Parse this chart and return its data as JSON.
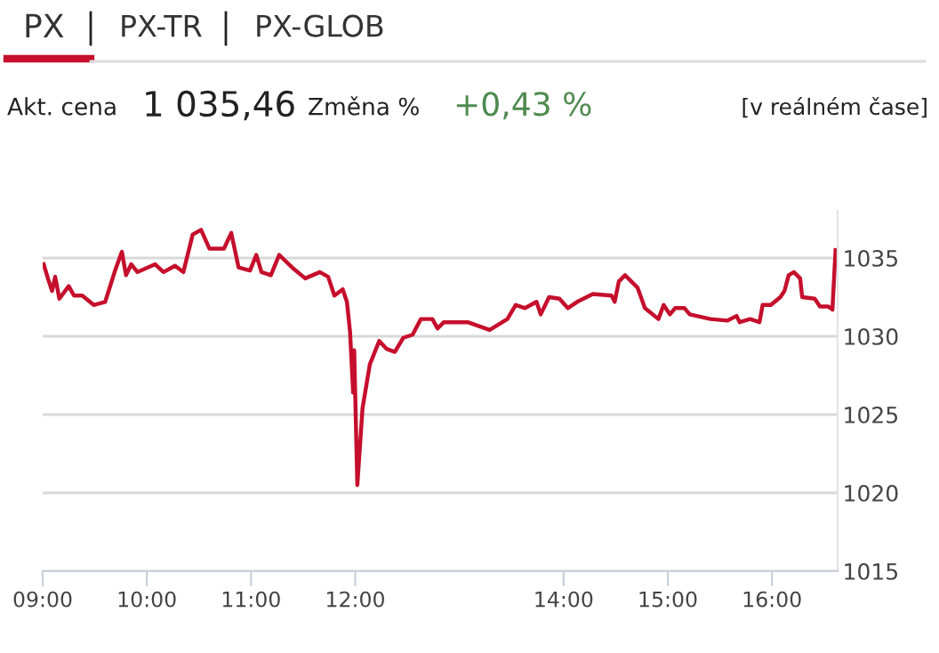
{
  "chart_data": {
    "type": "line",
    "title": "PX",
    "annotations": [
      "PX-TR",
      "PX-GLOB",
      "Akt. cena",
      "1 035,46",
      "Změna %",
      "+0,43 %",
      "[v reálném čase]"
    ],
    "series": [
      {
        "color": "#c50f2c",
        "x": [
          9.01,
          9.05,
          9.09,
          9.12,
          9.16,
          9.25,
          9.3,
          9.38,
          9.49,
          9.6,
          9.69,
          9.76,
          9.8,
          9.85,
          9.91,
          10.08,
          10.16,
          10.27,
          10.35,
          10.44,
          10.52,
          10.6,
          10.74,
          10.81,
          10.88,
          10.99,
          11.05,
          11.1,
          11.19,
          11.27,
          11.41,
          11.52,
          11.66,
          11.74,
          11.8,
          11.88,
          11.92,
          11.95,
          11.98,
          11.99,
          12.02,
          12.07,
          12.14,
          12.23,
          12.3,
          12.38,
          12.46,
          12.55,
          12.63,
          12.74,
          12.79,
          12.85,
          13.02,
          13.08,
          13.29,
          13.46,
          13.54,
          13.63,
          13.74,
          13.78,
          13.86,
          13.96,
          14.04,
          14.13,
          14.28,
          14.46,
          14.49,
          14.53,
          14.59,
          14.71,
          14.78,
          14.91,
          14.96,
          15.02,
          15.07,
          15.16,
          15.21,
          15.41,
          15.57,
          15.66,
          15.69,
          15.79,
          15.88,
          15.91,
          15.99,
          16.08,
          16.12,
          16.16,
          16.21,
          16.27,
          16.29,
          16.41,
          16.46,
          16.54,
          16.58,
          16.61
        ],
        "values": [
          1034.6,
          1033.7,
          1032.9,
          1033.8,
          1032.4,
          1033.2,
          1032.6,
          1032.6,
          1032.0,
          1032.2,
          1034.1,
          1035.4,
          1033.9,
          1034.6,
          1034.1,
          1034.6,
          1034.1,
          1034.5,
          1034.1,
          1036.5,
          1036.8,
          1035.6,
          1035.6,
          1036.6,
          1034.4,
          1034.2,
          1035.2,
          1034.1,
          1033.9,
          1035.2,
          1034.3,
          1033.7,
          1034.1,
          1033.8,
          1032.6,
          1033.0,
          1032.2,
          1030.3,
          1026.4,
          1029.1,
          1020.5,
          1025.4,
          1028.2,
          1029.7,
          1029.2,
          1029.0,
          1029.9,
          1030.1,
          1031.1,
          1031.1,
          1030.5,
          1030.9,
          1030.9,
          1030.9,
          1030.4,
          1031.1,
          1032.0,
          1031.8,
          1032.2,
          1031.4,
          1032.5,
          1032.4,
          1031.8,
          1032.2,
          1032.7,
          1032.6,
          1032.2,
          1033.5,
          1033.9,
          1033.1,
          1031.8,
          1031.1,
          1032.0,
          1031.4,
          1031.8,
          1031.8,
          1031.4,
          1031.1,
          1031.0,
          1031.3,
          1030.9,
          1031.1,
          1030.9,
          1032.0,
          1032.0,
          1032.5,
          1032.9,
          1033.9,
          1034.1,
          1033.7,
          1032.5,
          1032.4,
          1031.9,
          1031.9,
          1031.7,
          1035.5
        ]
      }
    ],
    "xlim": [
      9,
      16.63
    ],
    "ylim": [
      1015,
      1038
    ],
    "xticks": [
      {
        "value": 9,
        "label": "09:00"
      },
      {
        "value": 10,
        "label": "10:00"
      },
      {
        "value": 11,
        "label": "11:00"
      },
      {
        "value": 12,
        "label": "12:00"
      },
      {
        "value": 14,
        "label": "14:00"
      },
      {
        "value": 15,
        "label": "15:00"
      },
      {
        "value": 16,
        "label": "16:00"
      }
    ],
    "yticks": [
      1015,
      1020,
      1025,
      1030,
      1035
    ],
    "grid": "y",
    "marker": "none",
    "line_style": "solid"
  }
}
